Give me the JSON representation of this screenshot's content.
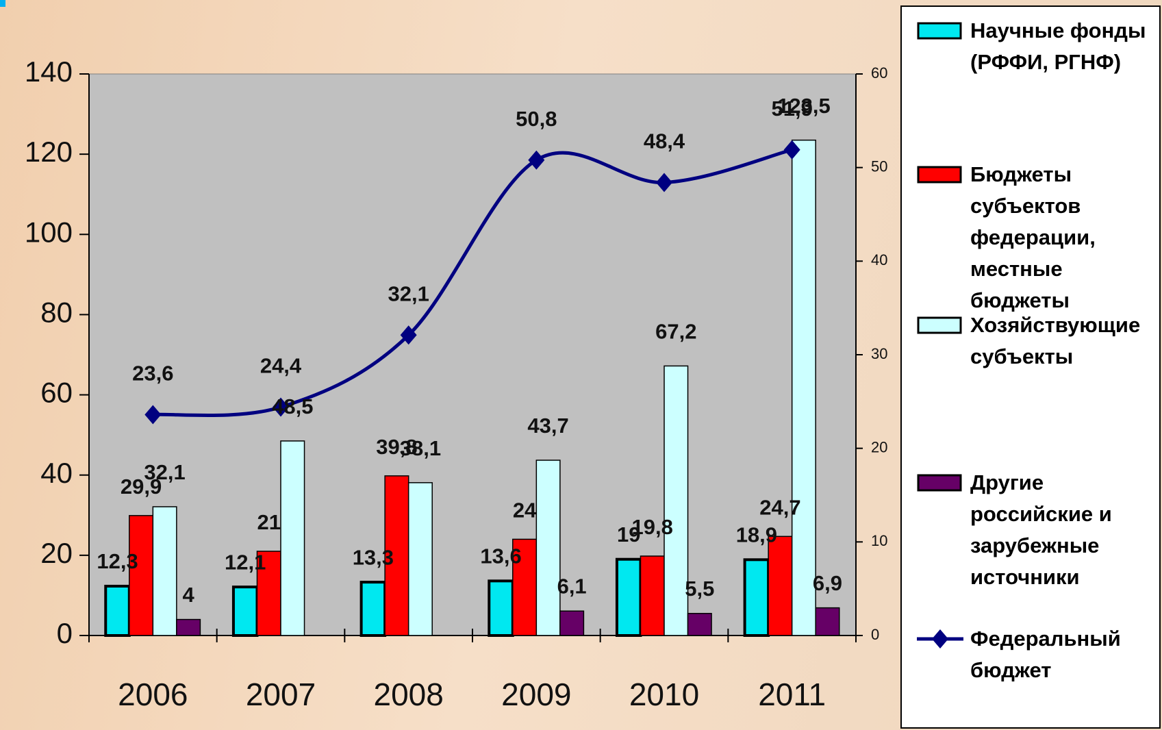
{
  "chart_data": {
    "type": "bar",
    "categories": [
      "2006",
      "2007",
      "2008",
      "2009",
      "2010",
      "2011"
    ],
    "ylim": [
      0,
      140
    ],
    "yticks": [
      0,
      20,
      40,
      60,
      80,
      100,
      120,
      140
    ],
    "y2lim": [
      0,
      60
    ],
    "y2ticks": [
      0,
      10,
      20,
      30,
      40,
      50,
      60
    ],
    "grid": false,
    "series": [
      {
        "name": "Научные фонды (РФФИ, РГНФ)",
        "color": "#00e8f0",
        "label_color": "#00e5ee",
        "values": [
          12.3,
          12.1,
          13.3,
          13.6,
          19,
          18.9
        ],
        "value_labels": [
          "12,3",
          "12,1",
          "13,3",
          "13,6",
          "19",
          "18,9"
        ]
      },
      {
        "name": "Бюджеты субъектов федерации, местные бюджеты",
        "color": "#ff0000",
        "label_color": "#f59ac0",
        "values": [
          29.9,
          21,
          39.8,
          24,
          19.8,
          24.7
        ],
        "value_labels": [
          "29,9",
          "21",
          "39,8",
          "24",
          "19,8",
          "24,7"
        ]
      },
      {
        "name": "Хозяйствующие субъекты",
        "color": "#ccffff",
        "label_color": "#ccffff",
        "values": [
          32.1,
          48.5,
          38.1,
          43.7,
          67.2,
          123.5
        ],
        "value_labels": [
          "32,1",
          "48,5",
          "38,1",
          "43,7",
          "67,2",
          "123,5"
        ]
      },
      {
        "name": "Другие российские и зарубежные источники",
        "color": "#660066",
        "label_color": "#cc99ff",
        "values": [
          4,
          null,
          null,
          6.1,
          5.5,
          6.9
        ],
        "value_labels": [
          "4",
          null,
          null,
          "6,1",
          "5,5",
          "6,9"
        ]
      },
      {
        "name": "Федеральный бюджет",
        "type": "line",
        "axis": "y2",
        "color": "#000080",
        "label_color": "#00b0f0",
        "values": [
          23.6,
          24.4,
          32.1,
          50.8,
          48.4,
          51.9
        ],
        "value_labels": [
          "23,6",
          "24,4",
          "32,1",
          "50,8",
          "48,4",
          "51,9"
        ]
      }
    ]
  }
}
